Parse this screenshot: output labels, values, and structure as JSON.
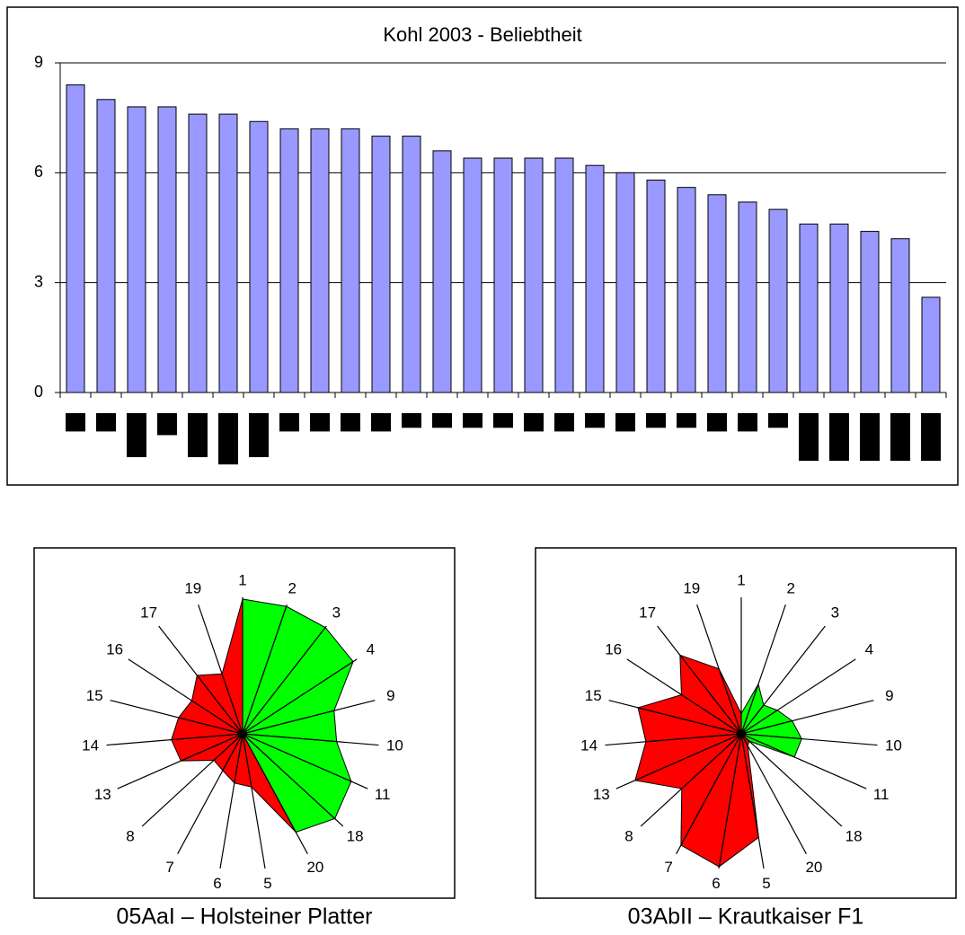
{
  "chart_data": [
    {
      "type": "bar",
      "title": "Kohl 2003 - Beliebtheit",
      "ylim": [
        0,
        9
      ],
      "yticks": [
        0,
        3,
        6,
        9
      ],
      "grid": true,
      "series": [
        {
          "color": "#9999ff",
          "values": [
            8.4,
            8.0,
            7.8,
            7.8,
            7.6,
            7.6,
            7.4,
            7.2,
            7.2,
            7.2,
            7.0,
            7.0,
            6.6,
            6.4,
            6.4,
            6.4,
            6.4,
            6.2,
            6.0,
            5.8,
            5.6,
            5.4,
            5.2,
            5.0,
            4.6,
            4.6,
            4.4,
            4.2,
            2.6
          ]
        },
        {
          "color": "#000000",
          "values": [
            0.5,
            0.5,
            1.2,
            0.6,
            1.2,
            1.4,
            1.2,
            0.5,
            0.5,
            0.5,
            0.5,
            0.4,
            0.4,
            0.4,
            0.4,
            0.5,
            0.5,
            0.4,
            0.5,
            0.4,
            0.4,
            0.5,
            0.5,
            0.4,
            1.3,
            1.3,
            1.3,
            1.3,
            1.3
          ]
        }
      ]
    },
    {
      "type": "radar",
      "caption": "05AaI –  Holsteiner Platter",
      "rlim": [
        0,
        10
      ],
      "axes": [
        "1",
        "2",
        "3",
        "4",
        "9",
        "10",
        "11",
        "18",
        "20",
        "5",
        "6",
        "7",
        "8",
        "13",
        "14",
        "15",
        "16",
        "17",
        "19"
      ],
      "values": [
        10,
        10,
        10,
        9.8,
        7,
        7,
        8.8,
        9.3,
        8.3,
        4,
        3.7,
        3.1,
        2.9,
        5,
        5.3,
        4.9,
        4.5,
        5.5,
        4.7
      ],
      "colors": [
        "#00ff00",
        "#00ff00",
        "#00ff00",
        "#00ff00",
        "#00ff00",
        "#00ff00",
        "#00ff00",
        "#00ff00",
        "#ff0000",
        "#ff0000",
        "#ff0000",
        "#ff0000",
        "#ff0000",
        "#ff0000",
        "#ff0000",
        "#ff0000",
        "#ff0000",
        "#ff0000",
        "#ff0000"
      ]
    },
    {
      "type": "radar",
      "caption": "03AbII – Krautkaiser F1",
      "rlim": [
        0,
        10
      ],
      "axes": [
        "1",
        "2",
        "3",
        "4",
        "9",
        "10",
        "11",
        "18",
        "20",
        "5",
        "6",
        "7",
        "8",
        "13",
        "14",
        "15",
        "16",
        "17",
        "19"
      ],
      "values": [
        1.5,
        3.9,
        2.7,
        3.2,
        3.9,
        4.5,
        4.3,
        0.8,
        1,
        7.8,
        10,
        9.4,
        6,
        8.6,
        7.1,
        7.9,
        5.3,
        7.4,
        5.1
      ],
      "colors": [
        "#00ff00",
        "#00ff00",
        "#00ff00",
        "#00ff00",
        "#00ff00",
        "#00ff00",
        "#00ff00",
        "#ff0000",
        "#ff0000",
        "#ff0000",
        "#ff0000",
        "#ff0000",
        "#ff0000",
        "#ff0000",
        "#ff0000",
        "#ff0000",
        "#ff0000",
        "#ff0000",
        "#ff0000"
      ]
    }
  ]
}
